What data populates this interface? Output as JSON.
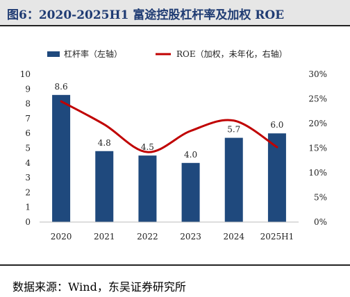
{
  "title": "图6：2020-2025H1 富途控股杠杆率及加权 ROE",
  "source": "数据来源：Wind，东吴证券研究所",
  "chart_data": {
    "type": "bar",
    "categories": [
      "2020",
      "2021",
      "2022",
      "2023",
      "2024",
      "2025H1"
    ],
    "series": [
      {
        "name": "杠杆率（左轴）",
        "type": "bar",
        "axis": "left",
        "color": "#1f497d",
        "values": [
          8.6,
          4.8,
          4.5,
          4.0,
          5.7,
          6.0
        ],
        "labels": [
          "8.6",
          "4.8",
          "4.5",
          "4.0",
          "5.7",
          "6.0"
        ]
      },
      {
        "name": "ROE（加权，未年化，右轴）",
        "type": "line",
        "axis": "right",
        "color": "#c00000",
        "values": [
          24.5,
          19.8,
          14.2,
          18.5,
          20.6,
          15.2
        ]
      }
    ],
    "y_left": {
      "min": 0,
      "max": 10,
      "ticks": [
        "0",
        "1",
        "2",
        "3",
        "4",
        "5",
        "6",
        "7",
        "8",
        "9",
        "10"
      ]
    },
    "y_right": {
      "min": 0,
      "max": 30,
      "ticks": [
        "0%",
        "5%",
        "10%",
        "15%",
        "20%",
        "25%",
        "30%"
      ]
    },
    "legend": "top",
    "grid": false
  }
}
